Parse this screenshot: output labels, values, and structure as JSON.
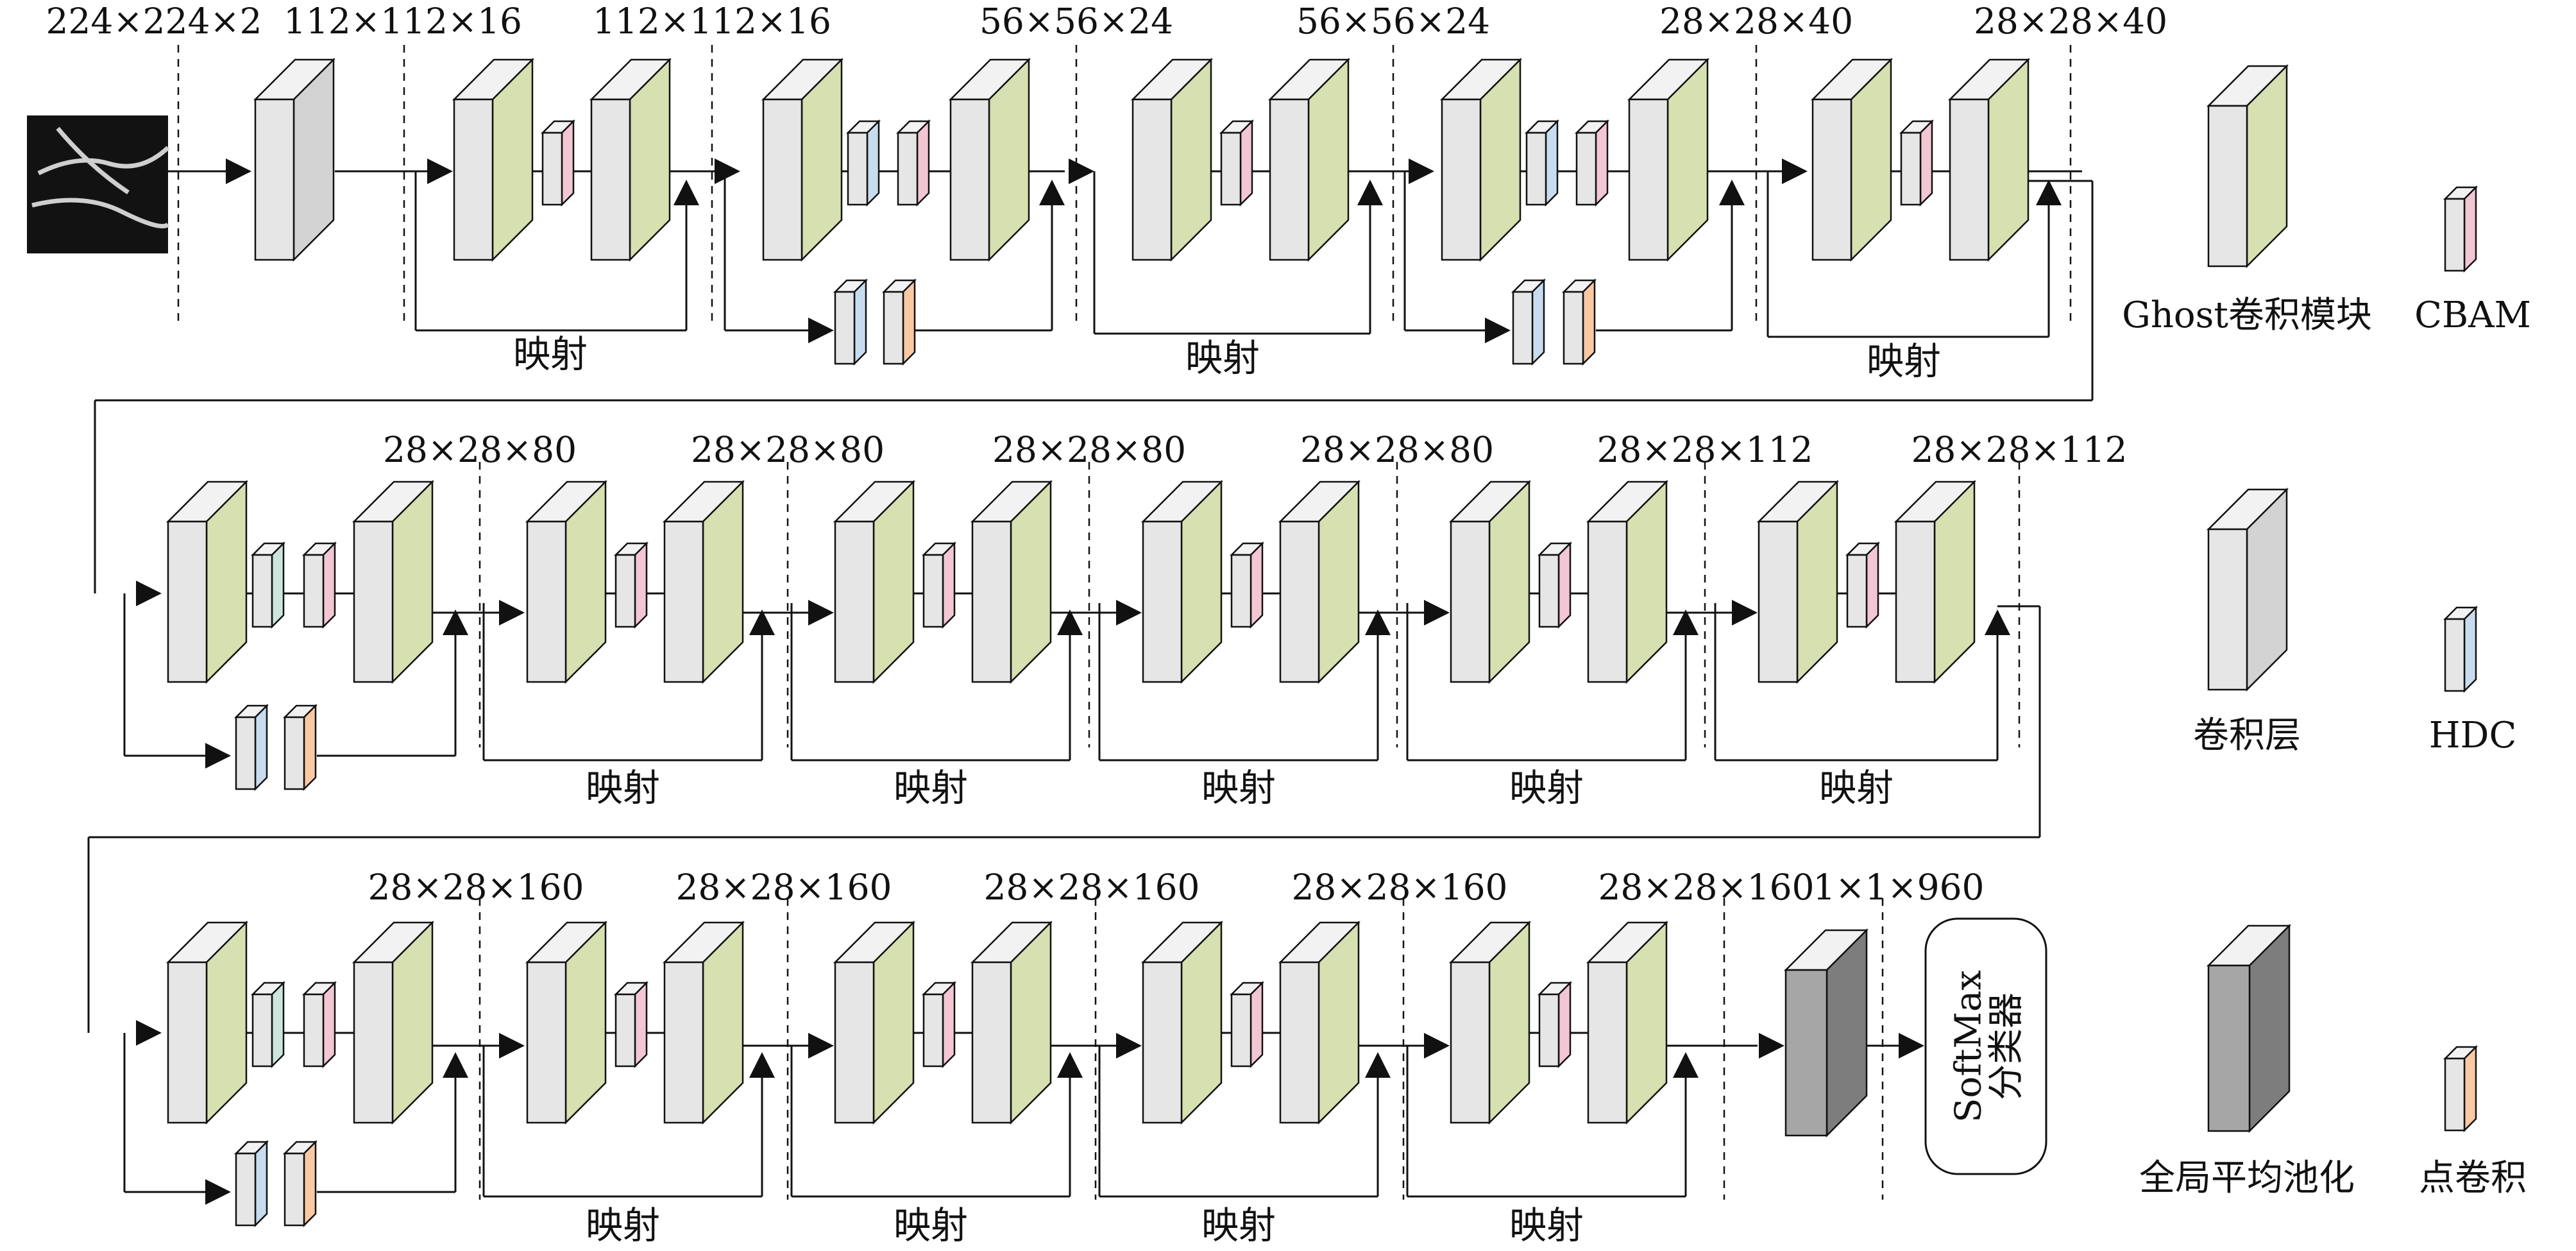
{
  "title": "",
  "dims": {
    "r1": [
      "224×224×2",
      "112×112×16",
      "112×112×16",
      "56×56×24",
      "56×56×24",
      "28×28×40",
      "28×28×40"
    ],
    "r2": [
      "28×28×80",
      "28×28×80",
      "28×28×80",
      "28×28×80",
      "28×28×112",
      "28×28×112"
    ],
    "r3": [
      "28×28×160",
      "28×28×160",
      "28×28×160",
      "28×28×160",
      "28×28×160",
      "1×1×960"
    ]
  },
  "shortcut_label": "映射",
  "classifier": {
    "line1": "SoftMax",
    "line2": "分类器"
  },
  "legend": {
    "ghost": "Ghost卷积模块",
    "cbam": "CBAM",
    "conv": "卷积层",
    "hdc": "HDC",
    "gap": "全局平均池化",
    "pw": "点卷积"
  },
  "colors": {
    "ghost_side": "#d6e0b0",
    "conv_side": "#d3d3d3",
    "block_front": "#e6e6e6",
    "cbam_side": "#f3c6d3",
    "hdc_side": "#c7dcef",
    "hdc_teal_side": "#cbe6dc",
    "pw_side": "#f9c9a4",
    "gap_front": "#a6a6a6",
    "gap_side": "#7d7d7d",
    "line": "#111111"
  }
}
